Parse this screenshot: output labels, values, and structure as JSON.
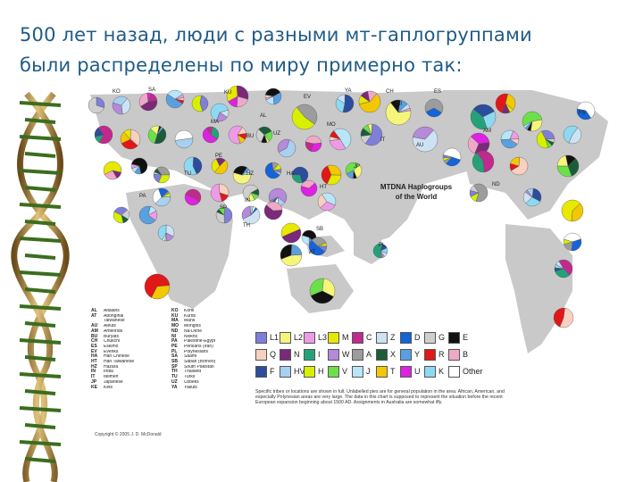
{
  "slide": {
    "title_line1": "500 лет назад, люди с разными мт-гаплогруппами",
    "title_line2": "были распределены по миру примерно так:",
    "accent_color": "#1f5b86"
  },
  "figure": {
    "map_title_line1": "MTDNA Haplogroups",
    "map_title_line2": "of the World",
    "copyright": "Copyright © 2005 J. D. McDonald",
    "note": "Specific tribes or locations are shown in full. Unlabelled pies are for general population in the area. African, American, and especially Polynesian areas are very large. The data in this chart is supposed to represent the situation before the recent European expansion beginning about 1500 AD. Assignments in Australia are somewhat iffy.",
    "codes_left": [
      {
        "code": "AL",
        "name": "Altaians"
      },
      {
        "code": "AT",
        "name": "Aboriginal"
      },
      {
        "code": "",
        "name": "Taiwanese"
      },
      {
        "code": "AU",
        "name": "Aleuts"
      },
      {
        "code": "AM",
        "name": "Amerinds"
      },
      {
        "code": "BU",
        "name": "Buryats"
      },
      {
        "code": "CH",
        "name": "Chukchi"
      },
      {
        "code": "ES",
        "name": "Eskimo"
      },
      {
        "code": "EV",
        "name": "Evenks"
      },
      {
        "code": "HA",
        "name": "Han Chinese"
      },
      {
        "code": "HT",
        "name": "Han Taiwanese"
      },
      {
        "code": "HZ",
        "name": "Hazara"
      },
      {
        "code": "IN",
        "name": "India"
      },
      {
        "code": "IT",
        "name": "Itelmen"
      },
      {
        "code": "JP",
        "name": "Japanese"
      },
      {
        "code": "KE",
        "name": "Kets"
      }
    ],
    "codes_right": [
      {
        "code": "KO",
        "name": "Komi"
      },
      {
        "code": "KU",
        "name": "Kurds"
      },
      {
        "code": "MA",
        "name": "Mans"
      },
      {
        "code": "MO",
        "name": "Mongols"
      },
      {
        "code": "ND",
        "name": "Na-Dene"
      },
      {
        "code": "NI",
        "name": "Nivkhs"
      },
      {
        "code": "PA",
        "name": "Palestine-Egypt"
      },
      {
        "code": "PE",
        "name": "Persians (Iran)"
      },
      {
        "code": "PL",
        "name": "Polynesians"
      },
      {
        "code": "SA",
        "name": "Saami"
      },
      {
        "code": "SB",
        "name": "Sabah (Borneo)"
      },
      {
        "code": "SP",
        "name": "South Pakistan"
      },
      {
        "code": "TH",
        "name": "Thailand"
      },
      {
        "code": "TU",
        "name": "Turks"
      },
      {
        "code": "UZ",
        "name": "Uzbeks"
      },
      {
        "code": "YA",
        "name": "Yakuts"
      }
    ],
    "haplogroups": [
      {
        "label": "L1",
        "color": "#7f7fd9"
      },
      {
        "label": "L2",
        "color": "#f5f57a"
      },
      {
        "label": "L3",
        "color": "#ee9be5"
      },
      {
        "label": "M",
        "color": "#e8e800"
      },
      {
        "label": "C",
        "color": "#c02a8e"
      },
      {
        "label": "Z",
        "color": "#cde2f3"
      },
      {
        "label": "D",
        "color": "#1463d9"
      },
      {
        "label": "G",
        "color": "#cfcfcf"
      },
      {
        "label": "E",
        "color": "#111111"
      },
      {
        "label": "Q",
        "color": "#f8cfc0"
      },
      {
        "label": "N",
        "color": "#7a2a78"
      },
      {
        "label": "I",
        "color": "#25a17a"
      },
      {
        "label": "W",
        "color": "#b48ad9"
      },
      {
        "label": "A",
        "color": "#9c9c9c"
      },
      {
        "label": "X",
        "color": "#1c5c3a"
      },
      {
        "label": "Y",
        "color": "#5aa0e0"
      },
      {
        "label": "R",
        "color": "#e01818"
      },
      {
        "label": "B",
        "color": "#f0a8c8"
      },
      {
        "label": "F",
        "color": "#2b4d9c"
      },
      {
        "label": "HV",
        "color": "#a8d0f0"
      },
      {
        "label": "H",
        "color": "#d7f000"
      },
      {
        "label": "V",
        "color": "#6ce04a"
      },
      {
        "label": "J",
        "color": "#b8e6f8"
      },
      {
        "label": "T",
        "color": "#f2c800"
      },
      {
        "label": "U",
        "color": "#dd22e0"
      },
      {
        "label": "K",
        "color": "#8dd9f2"
      },
      {
        "label": "Other",
        "color": "#ffffff"
      }
    ],
    "region_labels": [
      "KO",
      "SA",
      "KU",
      "MA",
      "EV",
      "YA",
      "CH",
      "ES",
      "NI",
      "FS",
      "AL",
      "IT",
      "AU",
      "BU",
      "MO",
      "UZ",
      "AM",
      "ND",
      "PE",
      "HZ",
      "TU",
      "HA",
      "JP",
      "SP",
      "IN",
      "HT",
      "TH",
      "SB",
      "PA",
      "PL",
      "AT"
    ]
  }
}
